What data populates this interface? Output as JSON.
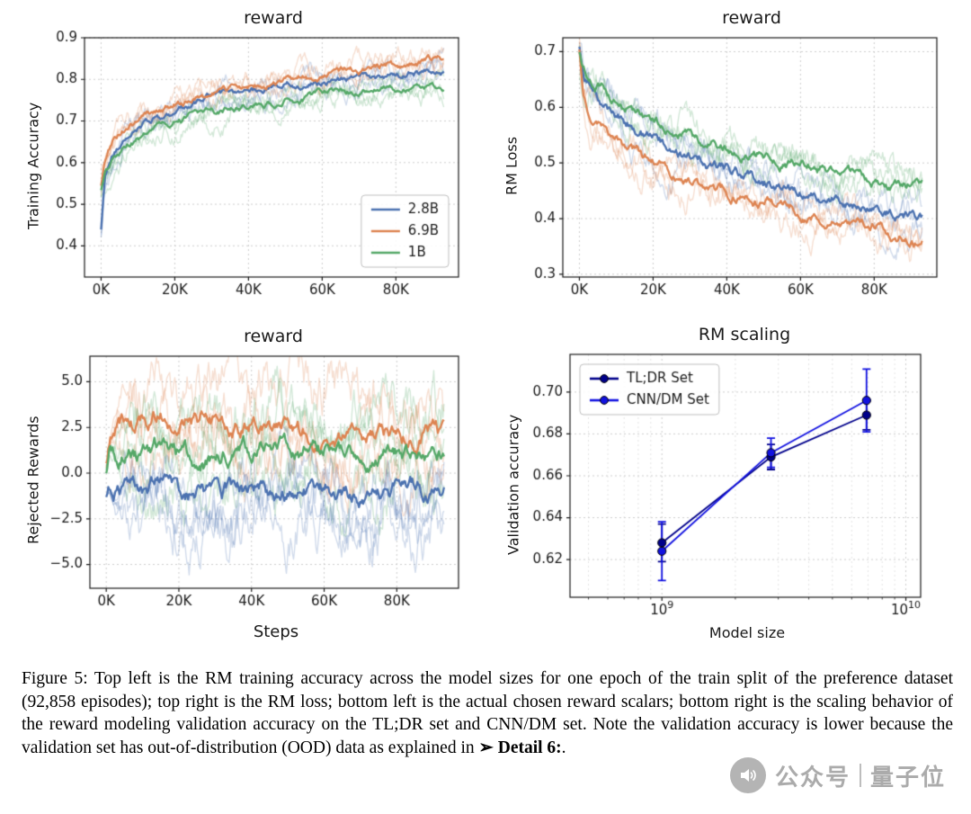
{
  "caption": {
    "prefix": "Figure 5: Top left is the RM training accuracy across the model sizes for one epoch of the train split of the preference dataset (92,858 episodes); top right is the RM loss; bottom left is the actual chosen reward scalars; bottom right is the scaling behavior of the reward modeling validation accuracy on the TL;DR set and CNN/DM set. Note the validation accuracy is lower because the validation set has out-of-distribution (OOD) data as explained in ",
    "arrow": "➢ ",
    "bold": "Detail 6:",
    "suffix": "."
  },
  "watermark": {
    "icon": "speaker-icon",
    "text_left": "公众号",
    "text_right": "量子位"
  },
  "chart_data": [
    {
      "id": "rm-training-accuracy",
      "type": "line",
      "title": "reward",
      "xlabel": "",
      "ylabel": "Training Accuracy",
      "xscale": "linear",
      "xlim": [
        -4500,
        97000
      ],
      "ylim": [
        0.325,
        0.9
      ],
      "xticks": [
        0,
        20000,
        40000,
        60000,
        80000
      ],
      "xtick_labels": [
        "0K",
        "20K",
        "40K",
        "60K",
        "80K"
      ],
      "yticks": [
        0.4,
        0.5,
        0.6,
        0.7,
        0.8,
        0.9
      ],
      "ytick_labels": [
        "0.4",
        "0.5",
        "0.6",
        "0.7",
        "0.8",
        "0.9"
      ],
      "grid": true,
      "legend": {
        "loc": "lower-right",
        "marker": false
      },
      "seed": 3,
      "x": [
        0,
        1000,
        3000,
        6000,
        10000,
        15000,
        20000,
        27000,
        35000,
        43000,
        51000,
        60000,
        70000,
        80000,
        88000,
        93000
      ],
      "series": [
        {
          "name": "2.8B",
          "color": "#4c72b0",
          "noise": 0.007,
          "bands": 3,
          "band_noise": 0.02,
          "band_spread": 0.012,
          "y": [
            0.44,
            0.555,
            0.615,
            0.655,
            0.685,
            0.705,
            0.725,
            0.745,
            0.765,
            0.775,
            0.785,
            0.795,
            0.805,
            0.812,
            0.818,
            0.82
          ]
        },
        {
          "name": "6.9B",
          "color": "#dd8452",
          "noise": 0.007,
          "bands": 3,
          "band_noise": 0.02,
          "band_spread": 0.012,
          "y": [
            0.54,
            0.6,
            0.645,
            0.675,
            0.7,
            0.722,
            0.74,
            0.758,
            0.775,
            0.79,
            0.8,
            0.813,
            0.824,
            0.835,
            0.845,
            0.85
          ]
        },
        {
          "name": "1B",
          "color": "#55a868",
          "noise": 0.007,
          "bands": 3,
          "band_noise": 0.02,
          "band_spread": 0.012,
          "y": [
            0.535,
            0.565,
            0.6,
            0.633,
            0.66,
            0.683,
            0.7,
            0.714,
            0.728,
            0.742,
            0.753,
            0.763,
            0.77,
            0.776,
            0.78,
            0.785
          ]
        }
      ]
    },
    {
      "id": "rm-loss",
      "type": "line",
      "title": "reward",
      "xlabel": "",
      "ylabel": "RM Loss",
      "xscale": "linear",
      "xlim": [
        -4500,
        97000
      ],
      "ylim": [
        0.295,
        0.725
      ],
      "xticks": [
        0,
        20000,
        40000,
        60000,
        80000
      ],
      "xtick_labels": [
        "0K",
        "20K",
        "40K",
        "60K",
        "80K"
      ],
      "yticks": [
        0.3,
        0.4,
        0.5,
        0.6,
        0.7
      ],
      "ytick_labels": [
        "0.3",
        "0.4",
        "0.5",
        "0.6",
        "0.7"
      ],
      "grid": true,
      "legend": null,
      "seed": 8,
      "x": [
        0,
        1000,
        3000,
        6000,
        10000,
        15000,
        20000,
        27000,
        35000,
        43000,
        51000,
        60000,
        70000,
        80000,
        88000,
        93000
      ],
      "series": [
        {
          "name": "2.8B",
          "color": "#4c72b0",
          "noise": 0.008,
          "bands": 3,
          "band_noise": 0.022,
          "band_spread": 0.012,
          "y": [
            0.705,
            0.66,
            0.635,
            0.615,
            0.59,
            0.565,
            0.545,
            0.522,
            0.5,
            0.482,
            0.465,
            0.447,
            0.432,
            0.418,
            0.405,
            0.4
          ]
        },
        {
          "name": "6.9B",
          "color": "#dd8452",
          "noise": 0.008,
          "bands": 3,
          "band_noise": 0.022,
          "band_spread": 0.012,
          "y": [
            0.7,
            0.625,
            0.585,
            0.565,
            0.545,
            0.52,
            0.5,
            0.478,
            0.458,
            0.44,
            0.426,
            0.41,
            0.396,
            0.382,
            0.368,
            0.36
          ]
        },
        {
          "name": "1B",
          "color": "#55a868",
          "noise": 0.008,
          "bands": 3,
          "band_noise": 0.022,
          "band_spread": 0.012,
          "y": [
            0.695,
            0.668,
            0.65,
            0.634,
            0.612,
            0.592,
            0.575,
            0.557,
            0.538,
            0.522,
            0.51,
            0.497,
            0.484,
            0.472,
            0.464,
            0.46
          ]
        }
      ]
    },
    {
      "id": "rejected-rewards",
      "type": "line",
      "title": "reward",
      "xlabel": "Steps",
      "ylabel": "Rejected Rewards",
      "xscale": "linear",
      "xlim": [
        -4500,
        97000
      ],
      "ylim": [
        -6.3,
        6.4
      ],
      "xticks": [
        0,
        20000,
        40000,
        60000,
        80000
      ],
      "xtick_labels": [
        "0K",
        "20K",
        "40K",
        "60K",
        "80K"
      ],
      "yticks": [
        -5,
        -2.5,
        0,
        2.5,
        5
      ],
      "ytick_labels": [
        "−5.0",
        "−2.5",
        "0.0",
        "2.5",
        "5.0"
      ],
      "grid": true,
      "legend": null,
      "seed": 5,
      "x": [
        0,
        1000,
        3000,
        6000,
        10000,
        15000,
        20000,
        27000,
        35000,
        43000,
        51000,
        60000,
        70000,
        80000,
        88000,
        93000
      ],
      "series": [
        {
          "name": "6.9B",
          "color": "#dd8452",
          "noise": 0.4,
          "bands": 4,
          "band_noise": 1.2,
          "band_spread": 2.2,
          "band_taper": true,
          "y": [
            0.3,
            1.6,
            2.4,
            3.0,
            2.7,
            3.1,
            2.6,
            2.9,
            2.4,
            2.6,
            2.3,
            2.15,
            2.1,
            2.1,
            2.1,
            2.1
          ]
        },
        {
          "name": "1B",
          "color": "#55a868",
          "noise": 0.4,
          "bands": 4,
          "band_noise": 1.2,
          "band_spread": 2.0,
          "band_taper": true,
          "y": [
            0.2,
            1.3,
            0.9,
            1.3,
            0.7,
            1.6,
            1.1,
            0.7,
            1.3,
            1.5,
            1.1,
            1.3,
            1.0,
            1.0,
            1.05,
            1.0
          ]
        },
        {
          "name": "2.8B",
          "color": "#4c72b0",
          "noise": 0.4,
          "bands": 4,
          "band_noise": 1.2,
          "band_spread": 2.0,
          "band_taper": true,
          "y": [
            -1.2,
            -0.9,
            -1.1,
            -0.6,
            -1.0,
            -0.4,
            -1.1,
            -1.3,
            -0.8,
            -1.0,
            -1.1,
            -0.9,
            -1.0,
            -1.05,
            -1.0,
            -1.0
          ]
        }
      ]
    },
    {
      "id": "rm-scaling",
      "type": "errorbar",
      "title": "RM scaling",
      "xlabel": "Model size",
      "ylabel": "Validation accuracy",
      "xscale": "log",
      "xlim": [
        420000000,
        11500000000
      ],
      "ylim": [
        0.602,
        0.718
      ],
      "xticks": [
        1000000000,
        10000000000
      ],
      "xtick_labels": [
        "10^9",
        "10^10"
      ],
      "yticks": [
        0.62,
        0.64,
        0.66,
        0.68,
        0.7
      ],
      "ytick_labels": [
        "0.62",
        "0.64",
        "0.66",
        "0.68",
        "0.70"
      ],
      "grid": true,
      "legend": {
        "loc": "upper-left",
        "marker": true
      },
      "series": [
        {
          "name": "TL;DR Set",
          "color": "#00008b",
          "x": [
            1000000000,
            2800000000,
            6900000000
          ],
          "y": [
            0.628,
            0.669,
            0.689
          ],
          "yerr": [
            0.009,
            0.006,
            0.007
          ]
        },
        {
          "name": "CNN/DM Set",
          "color": "#1212e0",
          "x": [
            1000000000,
            2800000000,
            6900000000
          ],
          "y": [
            0.624,
            0.671,
            0.696
          ],
          "yerr": [
            0.014,
            0.007,
            0.015
          ]
        }
      ]
    }
  ]
}
